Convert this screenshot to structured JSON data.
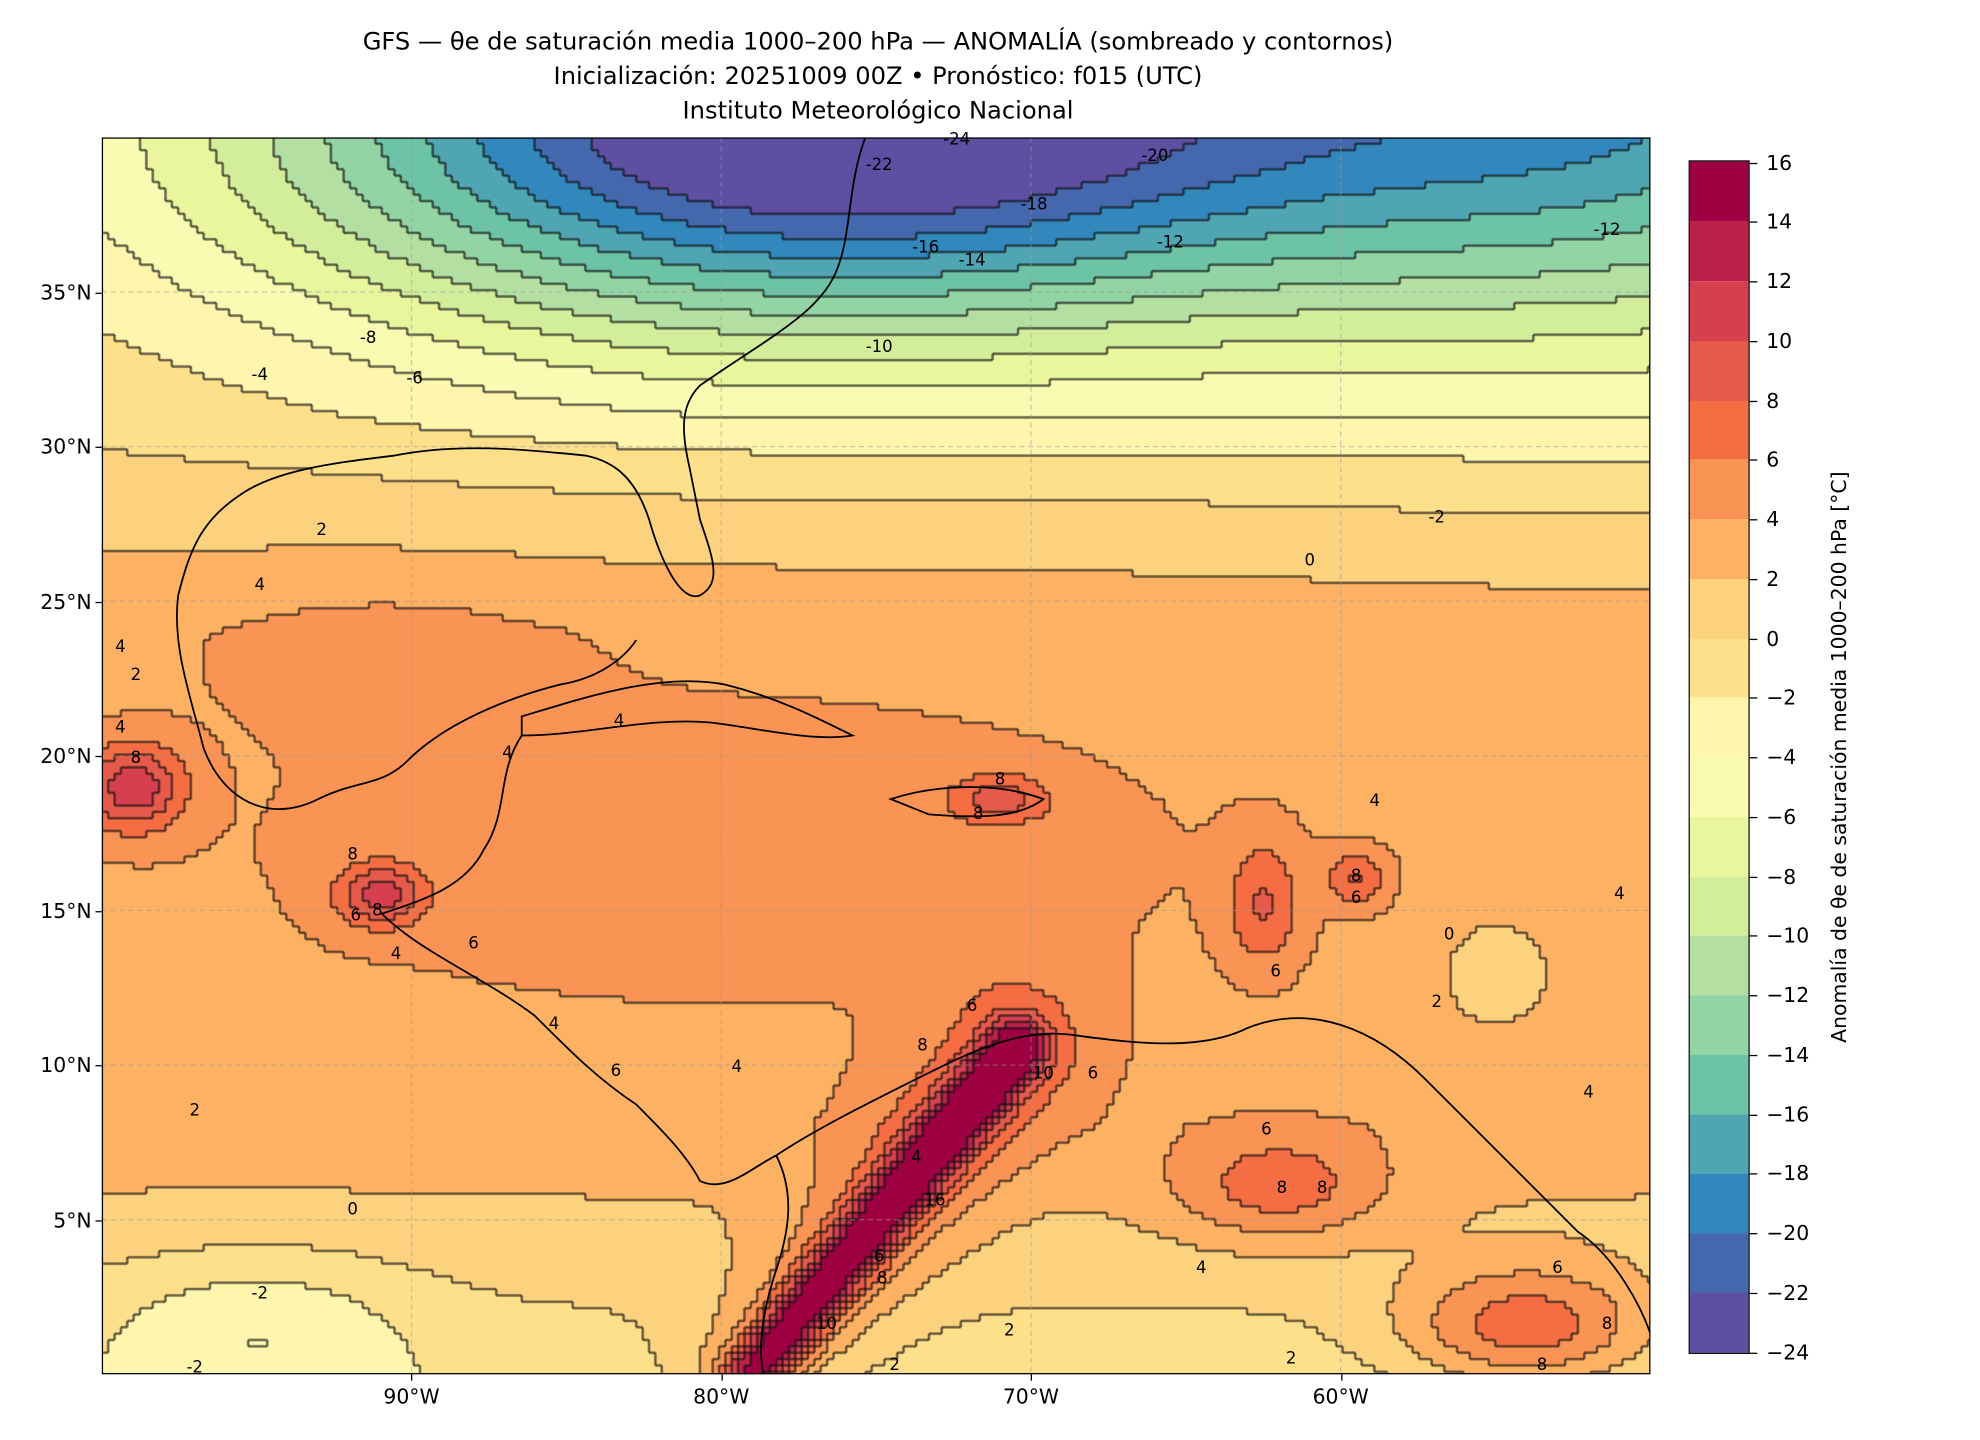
{
  "title": {
    "line1": "GFS — θe de saturación media 1000–200 hPa — ANOMALÍA (sombreado y contornos)",
    "line2": "Inicialización: 20251009 00Z   •   Pronóstico: f015 (UTC)",
    "line3": "Instituto Meteorológico Nacional"
  },
  "axes": {
    "lon_range": [
      -100,
      -50
    ],
    "lat_range": [
      0,
      40
    ],
    "x_ticks": [
      {
        "value": -90,
        "label": "90°W"
      },
      {
        "value": -80,
        "label": "80°W"
      },
      {
        "value": -70,
        "label": "70°W"
      },
      {
        "value": -60,
        "label": "60°W"
      }
    ],
    "y_ticks": [
      {
        "value": 35,
        "label": "35°N"
      },
      {
        "value": 30,
        "label": "30°N"
      },
      {
        "value": 25,
        "label": "25°N"
      },
      {
        "value": 20,
        "label": "20°N"
      },
      {
        "value": 15,
        "label": "15°N"
      },
      {
        "value": 10,
        "label": "10°N"
      },
      {
        "value": 5,
        "label": "5°N"
      }
    ]
  },
  "colorbar": {
    "label": "Anomalía de θe de saturación media 1000–200 hPa [°C]",
    "levels": [
      -24,
      -22,
      -20,
      -18,
      -16,
      -14,
      -12,
      -10,
      -8,
      -6,
      -4,
      -2,
      0,
      2,
      4,
      6,
      8,
      10,
      12,
      14,
      16
    ],
    "tick_labels": [
      "−24",
      "−22",
      "−20",
      "−18",
      "−16",
      "−14",
      "−12",
      "−10",
      "−8",
      "−6",
      "−4",
      "−2",
      "0",
      "2",
      "4",
      "6",
      "8",
      "10",
      "12",
      "14",
      "16"
    ],
    "colors": [
      "#5e4fa2",
      "#4467ad",
      "#3288bd",
      "#4fa5b1",
      "#6cc3a5",
      "#93d4a4",
      "#b3e0a2",
      "#d3ee9b",
      "#e9f69d",
      "#f8fbb1",
      "#fff6ae",
      "#fee08b",
      "#fdd27f",
      "#fdb163",
      "#f99455",
      "#f46d43",
      "#e55a4a",
      "#d6404e",
      "#bb2149",
      "#9e0142"
    ]
  },
  "contour_labels": [
    {
      "text": "-24",
      "lon": -72.4,
      "lat": 39.9
    },
    {
      "text": "-22",
      "lon": -74.9,
      "lat": 39.1
    },
    {
      "text": "-20",
      "lon": -66.0,
      "lat": 39.4
    },
    {
      "text": "-18",
      "lon": -69.9,
      "lat": 37.8
    },
    {
      "text": "-16",
      "lon": -73.4,
      "lat": 36.4
    },
    {
      "text": "-14",
      "lon": -71.9,
      "lat": 36.0
    },
    {
      "text": "-12",
      "lon": -65.5,
      "lat": 36.6
    },
    {
      "text": "-12",
      "lon": -51.4,
      "lat": 37.0
    },
    {
      "text": "-10",
      "lon": -74.9,
      "lat": 33.2
    },
    {
      "text": "-8",
      "lon": -91.4,
      "lat": 33.5
    },
    {
      "text": "-6",
      "lon": -89.9,
      "lat": 32.2
    },
    {
      "text": "-4",
      "lon": -94.9,
      "lat": 32.3
    },
    {
      "text": "-2",
      "lon": -56.9,
      "lat": 27.7
    },
    {
      "text": "0",
      "lon": -61.0,
      "lat": 26.3
    },
    {
      "text": "2",
      "lon": -92.9,
      "lat": 27.3
    },
    {
      "text": "4",
      "lon": -94.9,
      "lat": 25.5
    },
    {
      "text": "4",
      "lon": -99.4,
      "lat": 23.5
    },
    {
      "text": "2",
      "lon": -98.9,
      "lat": 22.6
    },
    {
      "text": "4",
      "lon": -99.4,
      "lat": 20.9
    },
    {
      "text": "8",
      "lon": -98.9,
      "lat": 19.9
    },
    {
      "text": "8",
      "lon": -91.9,
      "lat": 16.8
    },
    {
      "text": "6",
      "lon": -91.8,
      "lat": 14.8
    },
    {
      "text": "8",
      "lon": -91.1,
      "lat": 15.0
    },
    {
      "text": "4",
      "lon": -90.5,
      "lat": 13.6
    },
    {
      "text": "6",
      "lon": -88.0,
      "lat": 13.9
    },
    {
      "text": "4",
      "lon": -83.3,
      "lat": 21.1
    },
    {
      "text": "4",
      "lon": -86.9,
      "lat": 20.1
    },
    {
      "text": "8",
      "lon": -71.0,
      "lat": 19.2
    },
    {
      "text": "8",
      "lon": -71.7,
      "lat": 18.1
    },
    {
      "text": "4",
      "lon": -58.9,
      "lat": 18.5
    },
    {
      "text": "8",
      "lon": -59.5,
      "lat": 16.1
    },
    {
      "text": "6",
      "lon": -59.5,
      "lat": 15.4
    },
    {
      "text": "6",
      "lon": -62.1,
      "lat": 13.0
    },
    {
      "text": "0",
      "lon": -56.5,
      "lat": 14.2
    },
    {
      "text": "2",
      "lon": -56.9,
      "lat": 12.0
    },
    {
      "text": "4",
      "lon": -51.0,
      "lat": 15.5
    },
    {
      "text": "4",
      "lon": -52.0,
      "lat": 9.1
    },
    {
      "text": "6",
      "lon": -71.9,
      "lat": 11.9
    },
    {
      "text": "8",
      "lon": -73.5,
      "lat": 10.6
    },
    {
      "text": "10",
      "lon": -69.6,
      "lat": 9.7
    },
    {
      "text": "6",
      "lon": -68.0,
      "lat": 9.7
    },
    {
      "text": "6",
      "lon": -83.4,
      "lat": 9.8
    },
    {
      "text": "4",
      "lon": -85.4,
      "lat": 11.3
    },
    {
      "text": "4",
      "lon": -79.5,
      "lat": 9.9
    },
    {
      "text": "2",
      "lon": -97.0,
      "lat": 8.5
    },
    {
      "text": "0",
      "lon": -91.9,
      "lat": 5.3
    },
    {
      "text": "-2",
      "lon": -94.9,
      "lat": 2.6
    },
    {
      "text": "-2",
      "lon": -97.0,
      "lat": 0.2
    },
    {
      "text": "4",
      "lon": -73.7,
      "lat": 7.0
    },
    {
      "text": "16",
      "lon": -73.1,
      "lat": 5.6
    },
    {
      "text": "6",
      "lon": -74.9,
      "lat": 3.8
    },
    {
      "text": "8",
      "lon": -74.8,
      "lat": 3.1
    },
    {
      "text": "10",
      "lon": -76.6,
      "lat": 1.6
    },
    {
      "text": "4",
      "lon": -64.5,
      "lat": 3.4
    },
    {
      "text": "6",
      "lon": -62.4,
      "lat": 7.9
    },
    {
      "text": "8",
      "lon": -61.9,
      "lat": 6.0
    },
    {
      "text": "8",
      "lon": -60.6,
      "lat": 6.0
    },
    {
      "text": "6",
      "lon": -53.0,
      "lat": 3.4
    },
    {
      "text": "8",
      "lon": -51.4,
      "lat": 1.6
    },
    {
      "text": "8",
      "lon": -53.5,
      "lat": 0.3
    },
    {
      "text": "2",
      "lon": -74.4,
      "lat": 0.3
    },
    {
      "text": "2",
      "lon": -70.7,
      "lat": 1.4
    },
    {
      "text": "2",
      "lon": -61.6,
      "lat": 0.5
    }
  ],
  "chart_data": {
    "type": "heatmap",
    "title": "GFS — θe de saturación media 1000–200 hPa — ANOMALÍA (sombreado y contornos)",
    "xlabel": "",
    "ylabel": "",
    "xlim": [
      -100,
      -50
    ],
    "ylim": [
      0,
      40
    ],
    "zlim": [
      -24,
      16
    ],
    "grid": true,
    "legend": "colorbar-right"
  }
}
